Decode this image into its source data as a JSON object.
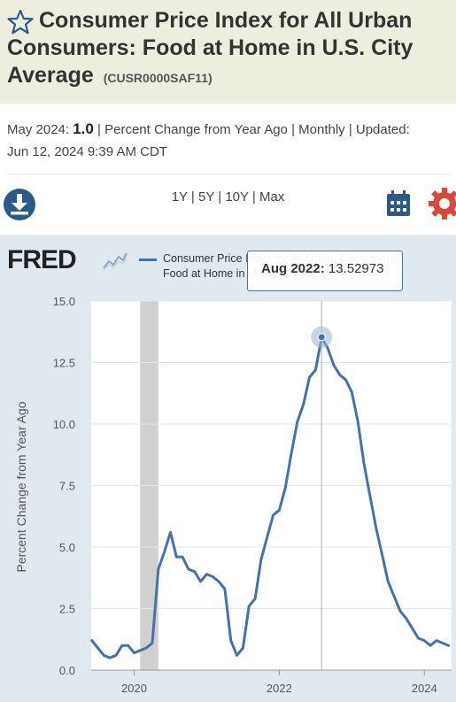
{
  "header": {
    "title": "Consumer Price Index for All Urban Consumers: Food at Home in U.S. City Average",
    "series_id": "(CUSR0000SAF11)"
  },
  "meta": {
    "latest_label": "May 2024:",
    "latest_value": "1.0",
    "units": "| Percent Change from Year Ago | Monthly | Updated:",
    "updated": "Jun 12, 2024 9:39 AM CDT"
  },
  "toolbar": {
    "range_options": [
      "1Y",
      "5Y",
      "10Y",
      "Max"
    ],
    "separator": " | "
  },
  "logo": {
    "text": "FRED"
  },
  "legend": {
    "label_line1": "Consumer Price Index for All Urban Consumers:",
    "label_line2": "Food at Home in U.S. City Average"
  },
  "tooltip": {
    "date": "Aug 2022:",
    "value": "13.52973"
  },
  "colors": {
    "series": "#4572a7",
    "panel": "#e1e9f0",
    "header": "#eeeedf",
    "recession": "#c8c8c8",
    "accent_red": "#d9473a",
    "icon_blue": "#2b5a8a"
  },
  "chart_data": {
    "type": "line",
    "title": "",
    "xlabel": "",
    "ylabel": "Percent Change from Year Ago",
    "ylim": [
      0,
      15
    ],
    "xlim": [
      "2019-06",
      "2024-05"
    ],
    "yticks": [
      "0.0",
      "2.5",
      "5.0",
      "7.5",
      "10.0",
      "12.5",
      "15.0"
    ],
    "xticks": [
      "2020",
      "2022",
      "2024"
    ],
    "grid": true,
    "recession": [
      "2020-02",
      "2020-04"
    ],
    "highlight": {
      "x": "2022-08",
      "y": 13.52973
    },
    "series": [
      {
        "name": "Consumer Price Index for All Urban Consumers: Food at Home in U.S. City Average",
        "x": [
          "2019-06",
          "2019-07",
          "2019-08",
          "2019-09",
          "2019-10",
          "2019-11",
          "2019-12",
          "2020-01",
          "2020-02",
          "2020-03",
          "2020-04",
          "2020-05",
          "2020-06",
          "2020-07",
          "2020-08",
          "2020-09",
          "2020-10",
          "2020-11",
          "2020-12",
          "2021-01",
          "2021-02",
          "2021-03",
          "2021-04",
          "2021-05",
          "2021-06",
          "2021-07",
          "2021-08",
          "2021-09",
          "2021-10",
          "2021-11",
          "2021-12",
          "2022-01",
          "2022-02",
          "2022-03",
          "2022-04",
          "2022-05",
          "2022-06",
          "2022-07",
          "2022-08",
          "2022-09",
          "2022-10",
          "2022-11",
          "2022-12",
          "2023-01",
          "2023-02",
          "2023-03",
          "2023-04",
          "2023-05",
          "2023-06",
          "2023-07",
          "2023-08",
          "2023-09",
          "2023-10",
          "2023-11",
          "2023-12",
          "2024-01",
          "2024-02",
          "2024-03",
          "2024-04",
          "2024-05"
        ],
        "values": [
          1.2,
          0.9,
          0.6,
          0.5,
          0.6,
          1.0,
          1.0,
          0.7,
          0.8,
          0.9,
          1.1,
          4.1,
          4.8,
          5.6,
          4.6,
          4.6,
          4.1,
          4.0,
          3.6,
          3.9,
          3.8,
          3.6,
          3.3,
          1.2,
          0.6,
          0.9,
          2.6,
          2.9,
          4.5,
          5.4,
          6.3,
          6.5,
          7.4,
          8.8,
          10.1,
          10.8,
          11.9,
          12.2,
          13.5,
          13.1,
          12.4,
          12.0,
          11.8,
          11.3,
          10.1,
          8.4,
          7.1,
          5.8,
          4.7,
          3.6,
          3.0,
          2.4,
          2.1,
          1.7,
          1.3,
          1.2,
          1.0,
          1.2,
          1.1,
          1.0
        ]
      }
    ]
  }
}
